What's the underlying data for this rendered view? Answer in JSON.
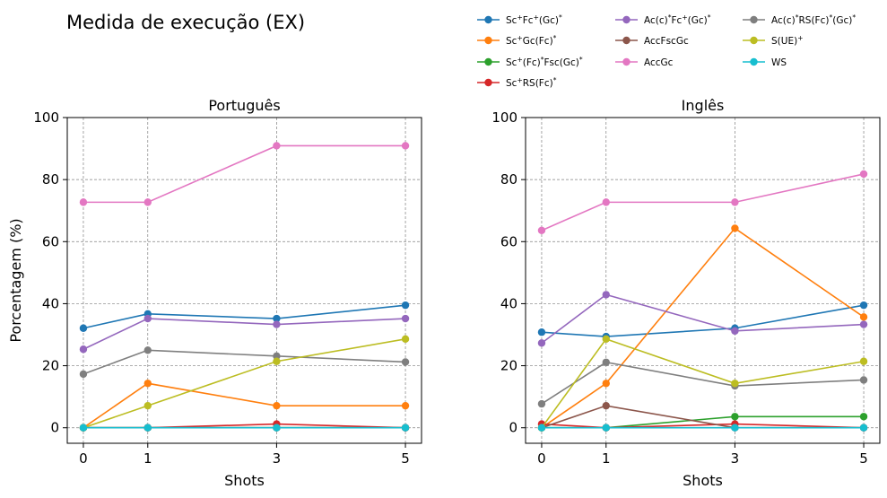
{
  "title": "Medida de execução (EX)",
  "chart_data": {
    "type": "line",
    "shared_x": [
      0,
      1,
      3,
      5
    ],
    "x_ticks": [
      "0",
      "1",
      "3",
      "5"
    ],
    "xlabel": "Shots",
    "ylabel": "Porcentagem (%)",
    "ylim": [
      -5,
      100
    ],
    "y_ticks": [
      0,
      20,
      40,
      60,
      80,
      100
    ],
    "grid": true,
    "legend_position": "top-right",
    "colors": {
      "Sc+Fc+(Gc)*": "#1f77b4",
      "Sc+Gc(Fc)*": "#ff7f0e",
      "Sc+(Fc)*Fsc(Gc)*": "#2ca02c",
      "Sc+RS(Fc)*": "#d62728",
      "Ac(c)*Fc+(Gc)*": "#9467bd",
      "AccFscGc": "#8c564b",
      "AccGc": "#e377c2",
      "Ac(c)*RS(Fc)*(Gc)*": "#7f7f7f",
      "S(UE)+": "#bcbd22",
      "WS": "#17becf"
    },
    "legend": [
      {
        "name": "Sc+Fc+(Gc)*",
        "base": "Sc",
        "sup": "+",
        "mid": "Fc",
        "sup2": "+",
        "tail": "(Gc)",
        "sup3": "*"
      },
      {
        "name": "Sc+Gc(Fc)*",
        "base": "Sc",
        "sup": "+",
        "mid": "Gc(Fc)",
        "sup2": "*",
        "tail": "",
        "sup3": ""
      },
      {
        "name": "Sc+(Fc)*Fsc(Gc)*",
        "base": "Sc",
        "sup": "+",
        "mid": "(Fc)",
        "sup2": "*",
        "tail": "Fsc(Gc)",
        "sup3": "*"
      },
      {
        "name": "Sc+RS(Fc)*",
        "base": "Sc",
        "sup": "+",
        "mid": "RS(Fc)",
        "sup2": "*",
        "tail": "",
        "sup3": ""
      },
      {
        "name": "Ac(c)*Fc+(Gc)*",
        "base": "Ac(c)",
        "sup": "*",
        "mid": "Fc",
        "sup2": "+",
        "tail": "(Gc)",
        "sup3": "*"
      },
      {
        "name": "AccFscGc",
        "base": "AccFscGc",
        "sup": "",
        "mid": "",
        "sup2": "",
        "tail": "",
        "sup3": ""
      },
      {
        "name": "AccGc",
        "base": "AccGc",
        "sup": "",
        "mid": "",
        "sup2": "",
        "tail": "",
        "sup3": ""
      },
      {
        "name": "Ac(c)*RS(Fc)*(Gc)*",
        "base": "Ac(c)",
        "sup": "*",
        "mid": "RS(Fc)",
        "sup2": "*",
        "tail": "(Gc)",
        "sup3": "*"
      },
      {
        "name": "S(UE)+",
        "base": "S(UE)",
        "sup": "+",
        "mid": "",
        "sup2": "",
        "tail": "",
        "sup3": ""
      },
      {
        "name": "WS",
        "base": "WS",
        "sup": "",
        "mid": "",
        "sup2": "",
        "tail": "",
        "sup3": ""
      }
    ],
    "panels": [
      {
        "title": "Português",
        "series": [
          {
            "name": "Sc+Fc+(Gc)*",
            "values": [
              32.1,
              36.7,
              35.2,
              39.5
            ]
          },
          {
            "name": "Sc+Gc(Fc)*",
            "values": [
              0,
              14.3,
              7.1,
              7.1
            ]
          },
          {
            "name": "Sc+(Fc)*Fsc(Gc)*",
            "values": [
              0,
              0,
              0,
              0
            ]
          },
          {
            "name": "Sc+RS(Fc)*",
            "values": [
              0,
              0,
              1.2,
              0
            ]
          },
          {
            "name": "Ac(c)*Fc+(Gc)*",
            "values": [
              25.3,
              35.2,
              33.3,
              35.2
            ]
          },
          {
            "name": "AccFscGc",
            "values": [
              0,
              0,
              0,
              0
            ]
          },
          {
            "name": "AccGc",
            "values": [
              72.7,
              72.7,
              90.9,
              90.9
            ]
          },
          {
            "name": "Ac(c)*RS(Fc)*(Gc)*",
            "values": [
              17.3,
              25.0,
              23.1,
              21.2
            ]
          },
          {
            "name": "S(UE)+",
            "values": [
              0,
              7.1,
              21.4,
              28.6
            ]
          },
          {
            "name": "WS",
            "values": [
              0,
              0,
              0,
              0
            ]
          }
        ]
      },
      {
        "title": "Inglês",
        "series": [
          {
            "name": "Sc+Fc+(Gc)*",
            "values": [
              30.8,
              29.4,
              32.1,
              39.5
            ]
          },
          {
            "name": "Sc+Gc(Fc)*",
            "values": [
              0,
              14.3,
              64.3,
              35.7
            ]
          },
          {
            "name": "Sc+(Fc)*Fsc(Gc)*",
            "values": [
              0,
              0,
              3.6,
              3.6
            ]
          },
          {
            "name": "Sc+RS(Fc)*",
            "values": [
              1.2,
              0,
              1.2,
              0
            ]
          },
          {
            "name": "Ac(c)*Fc+(Gc)*",
            "values": [
              27.3,
              42.9,
              31.2,
              33.3
            ]
          },
          {
            "name": "AccFscGc",
            "values": [
              0,
              7.1,
              0,
              0
            ]
          },
          {
            "name": "AccGc",
            "values": [
              63.6,
              72.7,
              72.7,
              81.8
            ]
          },
          {
            "name": "Ac(c)*RS(Fc)*(Gc)*",
            "values": [
              7.7,
              21.1,
              13.5,
              15.4
            ]
          },
          {
            "name": "S(UE)+",
            "values": [
              0,
              28.6,
              14.3,
              21.4
            ]
          },
          {
            "name": "WS",
            "values": [
              0,
              0,
              0,
              0
            ]
          }
        ]
      }
    ]
  }
}
